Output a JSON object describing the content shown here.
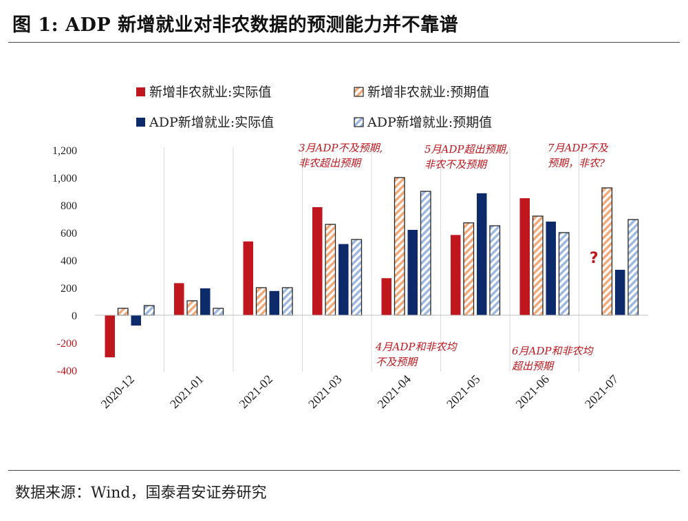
{
  "figure_title": "图 1:  ADP 新增就业对非农数据的预测能力并不靠谱",
  "source_note": "数据来源：Wind，国泰君安证券研究",
  "colors": {
    "nfp_actual": "#c0161d",
    "nfp_forecast_stripe": "#f3a878",
    "adp_actual": "#0d2a6a",
    "adp_forecast_stripe": "#9db8e0",
    "negative_tick": "#c0161d",
    "positive_tick": "#222222",
    "annotation": "#c0161d"
  },
  "chart_data": {
    "type": "bar",
    "categories": [
      "2020-12",
      "2021-01",
      "2021-02",
      "2021-03",
      "2021-04",
      "2021-05",
      "2021-06",
      "2021-07"
    ],
    "series": [
      {
        "name": "新增非农就业:实际值",
        "pattern": "solid",
        "values": [
          -306,
          233,
          536,
          785,
          269,
          583,
          850,
          null
        ]
      },
      {
        "name": "新增非农就业:预期值",
        "pattern": "striped",
        "values": [
          50,
          105,
          200,
          660,
          1000,
          671,
          720,
          925
        ]
      },
      {
        "name": "ADP新增就业:实际值",
        "pattern": "solid",
        "values": [
          -75,
          195,
          176,
          517,
          620,
          886,
          680,
          330
        ]
      },
      {
        "name": "ADP新增就业:预期值",
        "pattern": "striped",
        "values": [
          70,
          50,
          200,
          550,
          900,
          650,
          600,
          695
        ]
      }
    ],
    "ylim": [
      -400,
      1200
    ],
    "yticks": [
      -400,
      -200,
      0,
      200,
      400,
      600,
      800,
      1000,
      1200
    ],
    "ytick_labels": [
      "-400",
      "-200",
      "0",
      "200",
      "400",
      "600",
      "800",
      "1,000",
      "1,200"
    ],
    "legend_position": "top",
    "grid": "vertical category separators",
    "missing_marker": {
      "category": "2021-07",
      "text": "?"
    },
    "annotations": [
      {
        "lines": [
          "3月ADP不及预期,",
          "非农超出预期"
        ],
        "category": "2021-03",
        "position": "above"
      },
      {
        "lines": [
          "5月ADP超出预期,",
          "非农不及预期"
        ],
        "category": "2021-05",
        "position": "above"
      },
      {
        "lines": [
          "7月ADP不及",
          "预期，非农?"
        ],
        "category": "2021-07",
        "position": "above"
      },
      {
        "lines": [
          "4月ADP和非农均",
          "不及预期"
        ],
        "category": "2021-04",
        "position": "below"
      },
      {
        "lines": [
          "6月ADP和非农均",
          "超出预期"
        ],
        "category": "2021-06",
        "position": "below"
      }
    ]
  }
}
